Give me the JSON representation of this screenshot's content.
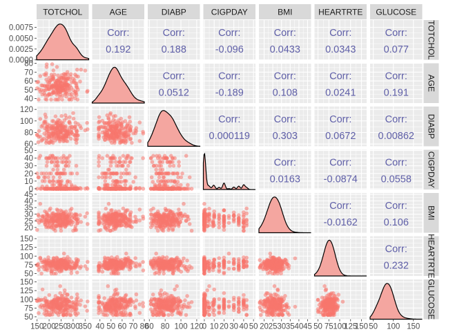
{
  "chart_data": {
    "type": "scatter-matrix",
    "variables": [
      "TOTCHOL",
      "AGE",
      "DIABP",
      "CIGPDAY",
      "BMI",
      "HEARTRTE",
      "GLUCOSE"
    ],
    "corr_label": "Corr:",
    "correlations": [
      {
        "row": "TOTCHOL",
        "col": "AGE",
        "value": "0.192"
      },
      {
        "row": "TOTCHOL",
        "col": "DIABP",
        "value": "0.188"
      },
      {
        "row": "TOTCHOL",
        "col": "CIGPDAY",
        "value": "-0.096"
      },
      {
        "row": "TOTCHOL",
        "col": "BMI",
        "value": "0.0433"
      },
      {
        "row": "TOTCHOL",
        "col": "HEARTRTE",
        "value": "0.0343"
      },
      {
        "row": "TOTCHOL",
        "col": "GLUCOSE",
        "value": "0.077"
      },
      {
        "row": "AGE",
        "col": "DIABP",
        "value": "0.0512"
      },
      {
        "row": "AGE",
        "col": "CIGPDAY",
        "value": "-0.189"
      },
      {
        "row": "AGE",
        "col": "BMI",
        "value": "0.108"
      },
      {
        "row": "AGE",
        "col": "HEARTRTE",
        "value": "0.0241"
      },
      {
        "row": "AGE",
        "col": "GLUCOSE",
        "value": "0.191"
      },
      {
        "row": "DIABP",
        "col": "CIGPDAY",
        "value": "0.000119"
      },
      {
        "row": "DIABP",
        "col": "BMI",
        "value": "0.303"
      },
      {
        "row": "DIABP",
        "col": "HEARTRTE",
        "value": "0.0672"
      },
      {
        "row": "DIABP",
        "col": "GLUCOSE",
        "value": "0.00862"
      },
      {
        "row": "CIGPDAY",
        "col": "BMI",
        "value": "0.0163"
      },
      {
        "row": "CIGPDAY",
        "col": "HEARTRTE",
        "value": "-0.0874"
      },
      {
        "row": "CIGPDAY",
        "col": "GLUCOSE",
        "value": "0.0558"
      },
      {
        "row": "BMI",
        "col": "HEARTRTE",
        "value": "-0.0162"
      },
      {
        "row": "BMI",
        "col": "GLUCOSE",
        "value": "0.106"
      },
      {
        "row": "HEARTRTE",
        "col": "GLUCOSE",
        "value": "0.232"
      }
    ],
    "x_axes": [
      {
        "var": "TOTCHOL",
        "range": [
          148,
          365
        ],
        "ticks": [
          "150",
          "200",
          "250",
          "300",
          "350"
        ]
      },
      {
        "var": "AGE",
        "range": [
          33,
          80
        ],
        "ticks": [
          "40",
          "50",
          "60",
          "70",
          "80"
        ]
      },
      {
        "var": "DIABP",
        "range": [
          58,
          124
        ],
        "ticks": [
          "60",
          "80",
          "100",
          "120"
        ]
      },
      {
        "var": "CIGPDAY",
        "range": [
          -1,
          52
        ],
        "ticks": [
          "0",
          "10",
          "20",
          "30",
          "40",
          "50"
        ]
      },
      {
        "var": "BMI",
        "range": [
          17,
          47
        ],
        "ticks": [
          "20",
          "25",
          "30",
          "35",
          "40",
          "45"
        ]
      },
      {
        "var": "HEARTRTE",
        "range": [
          42,
          162
        ],
        "ticks": [
          "50",
          "75",
          "100",
          "125",
          "150"
        ]
      },
      {
        "var": "GLUCOSE",
        "range": [
          42,
          172
        ],
        "ticks": [
          "50",
          "100",
          "150"
        ]
      }
    ],
    "y_axes": [
      {
        "var": "TOTCHOL",
        "density": true,
        "range": [
          0,
          0.0092
        ],
        "ticks": [
          "0.0000",
          "0.0025",
          "0.0050",
          "0.0075"
        ]
      },
      {
        "var": "AGE",
        "range": [
          35,
          80
        ],
        "ticks": [
          "40",
          "50",
          "60",
          "70",
          "80"
        ]
      },
      {
        "var": "DIABP",
        "range": [
          56,
          125
        ],
        "ticks": [
          "60",
          "80",
          "100",
          "120"
        ]
      },
      {
        "var": "CIGPDAY",
        "range": [
          -1,
          51
        ],
        "ticks": [
          "0",
          "10",
          "20",
          "30",
          "40",
          "50"
        ]
      },
      {
        "var": "BMI",
        "range": [
          16,
          46
        ],
        "ticks": [
          "20",
          "25",
          "30",
          "35",
          "40",
          "45"
        ]
      },
      {
        "var": "HEARTRTE",
        "range": [
          43,
          157
        ],
        "ticks": [
          "50",
          "75",
          "100",
          "125",
          "150"
        ]
      },
      {
        "var": "GLUCOSE",
        "range": [
          43,
          157
        ],
        "ticks": [
          "50",
          "75",
          "100",
          "125",
          "150"
        ]
      }
    ],
    "point_color": "#f8766d",
    "density_fill": "#f4a6a0",
    "grid": true
  }
}
